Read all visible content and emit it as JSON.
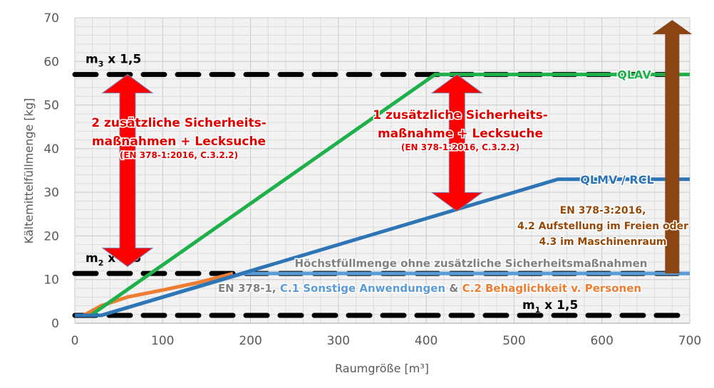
{
  "chart_data": {
    "type": "line",
    "title": "",
    "xlabel": "Raumgröße [m³]",
    "ylabel": "Kältemittelfüllmenge [kg]",
    "xlim": [
      0,
      700
    ],
    "ylim": [
      0,
      70
    ],
    "xticks": [
      "0",
      "100",
      "200",
      "300",
      "400",
      "500",
      "600",
      "700"
    ],
    "yticks": [
      "0",
      "10",
      "20",
      "30",
      "40",
      "50",
      "60",
      "70"
    ],
    "grid": true,
    "series": [
      {
        "name": "QLAV",
        "color": "#1fb04b",
        "points": [
          [
            0,
            1.8
          ],
          [
            18,
            1.8
          ],
          [
            410,
            57
          ],
          [
            700,
            57
          ]
        ]
      },
      {
        "name": "QLMV / RCL",
        "color": "#2e75b6",
        "points": [
          [
            0,
            1.8
          ],
          [
            30,
            1.8
          ],
          [
            550,
            33
          ],
          [
            700,
            33
          ]
        ]
      },
      {
        "name": "C.1 Sonstige Anwendungen",
        "color": "#5b9bd5",
        "points": [
          [
            0,
            1.8
          ],
          [
            30,
            1.8
          ],
          [
            192,
            11.4
          ],
          [
            700,
            11.4
          ]
        ]
      },
      {
        "name": "C.2 Behaglichkeit v. Personen",
        "color": "#ed7d31",
        "points": [
          [
            10,
            1.8
          ],
          [
            30,
            4
          ],
          [
            60,
            6
          ],
          [
            100,
            7.6
          ],
          [
            140,
            9.3
          ],
          [
            180,
            11.4
          ]
        ]
      }
    ],
    "reference_lines": [
      {
        "label_main": "m",
        "label_sub": "3",
        "label_rest": " x 1,5",
        "y": 57
      },
      {
        "label_main": "m",
        "label_sub": "2",
        "label_rest": " x 1,5",
        "y": 11.4
      },
      {
        "label_main": "m",
        "label_sub": "1",
        "label_rest": " x 1,5",
        "y": 1.8
      }
    ],
    "arrows": [
      {
        "color": "#ff0000",
        "x": 60,
        "from": 13,
        "to": 57,
        "double": true
      },
      {
        "color": "#ff0000",
        "x": 435,
        "from": 25.7,
        "to": 57,
        "double": true
      },
      {
        "color": "#8b4513",
        "x": 680,
        "from": 11.4,
        "to": 69.5,
        "double": false
      }
    ],
    "annotations": {
      "left_red": [
        "2 zusätzliche Sicherheits-",
        "maßnahmen + Lecksuche",
        "(EN 378-1:2016, C.3.2.2)"
      ],
      "right_red": [
        "1 zusätzliche Sicherheits-",
        "maßnahme + Lecksuche",
        "(EN 378-1:2016, C.3.2.2)"
      ],
      "brown": [
        "EN 378-3:2016,",
        "4.2 Aufstellung im Freien oder",
        "4.3 im Maschinenraum"
      ],
      "max_fill": "Höchstfüllmenge ohne zusätzliche Sicherheitsmaßnahmen",
      "en_prefix": "EN 378-1, ",
      "c1": "C.1 Sonstige Anwendungen",
      "amp": " & ",
      "c2": "C.2 Behaglichkeit v. Personen",
      "qlav": "QLAV",
      "qlmv": "QLMV / RCL"
    }
  }
}
